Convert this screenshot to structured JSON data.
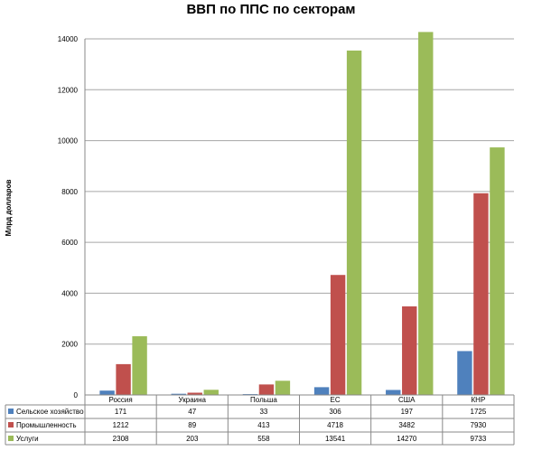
{
  "chart_data": {
    "type": "bar",
    "title": "ВВП по ППС по секторам",
    "ylabel": "Млрд долларов",
    "xlabel": "",
    "categories": [
      "Россия",
      "Украина",
      "Польша",
      "ЕС",
      "США",
      "КНР"
    ],
    "series": [
      {
        "name": "Сельское хозяйство",
        "color": "#4f81bd",
        "values": [
          171,
          47,
          33,
          306,
          197,
          1725
        ]
      },
      {
        "name": "Промышленность",
        "color": "#c0504d",
        "values": [
          1212,
          89,
          413,
          4718,
          3482,
          7930
        ]
      },
      {
        "name": "Услуги",
        "color": "#9bbb59",
        "values": [
          2308,
          203,
          558,
          13541,
          14270,
          9733
        ]
      }
    ],
    "ylim": [
      0,
      14000
    ],
    "yticks": [
      0,
      2000,
      4000,
      6000,
      8000,
      10000,
      12000,
      14000
    ],
    "ytick_labels": [
      "0",
      "2000",
      "4000",
      "6000",
      "8000",
      "10000",
      "12000",
      "14000"
    ],
    "grid": true,
    "legend": "data-table-below"
  }
}
